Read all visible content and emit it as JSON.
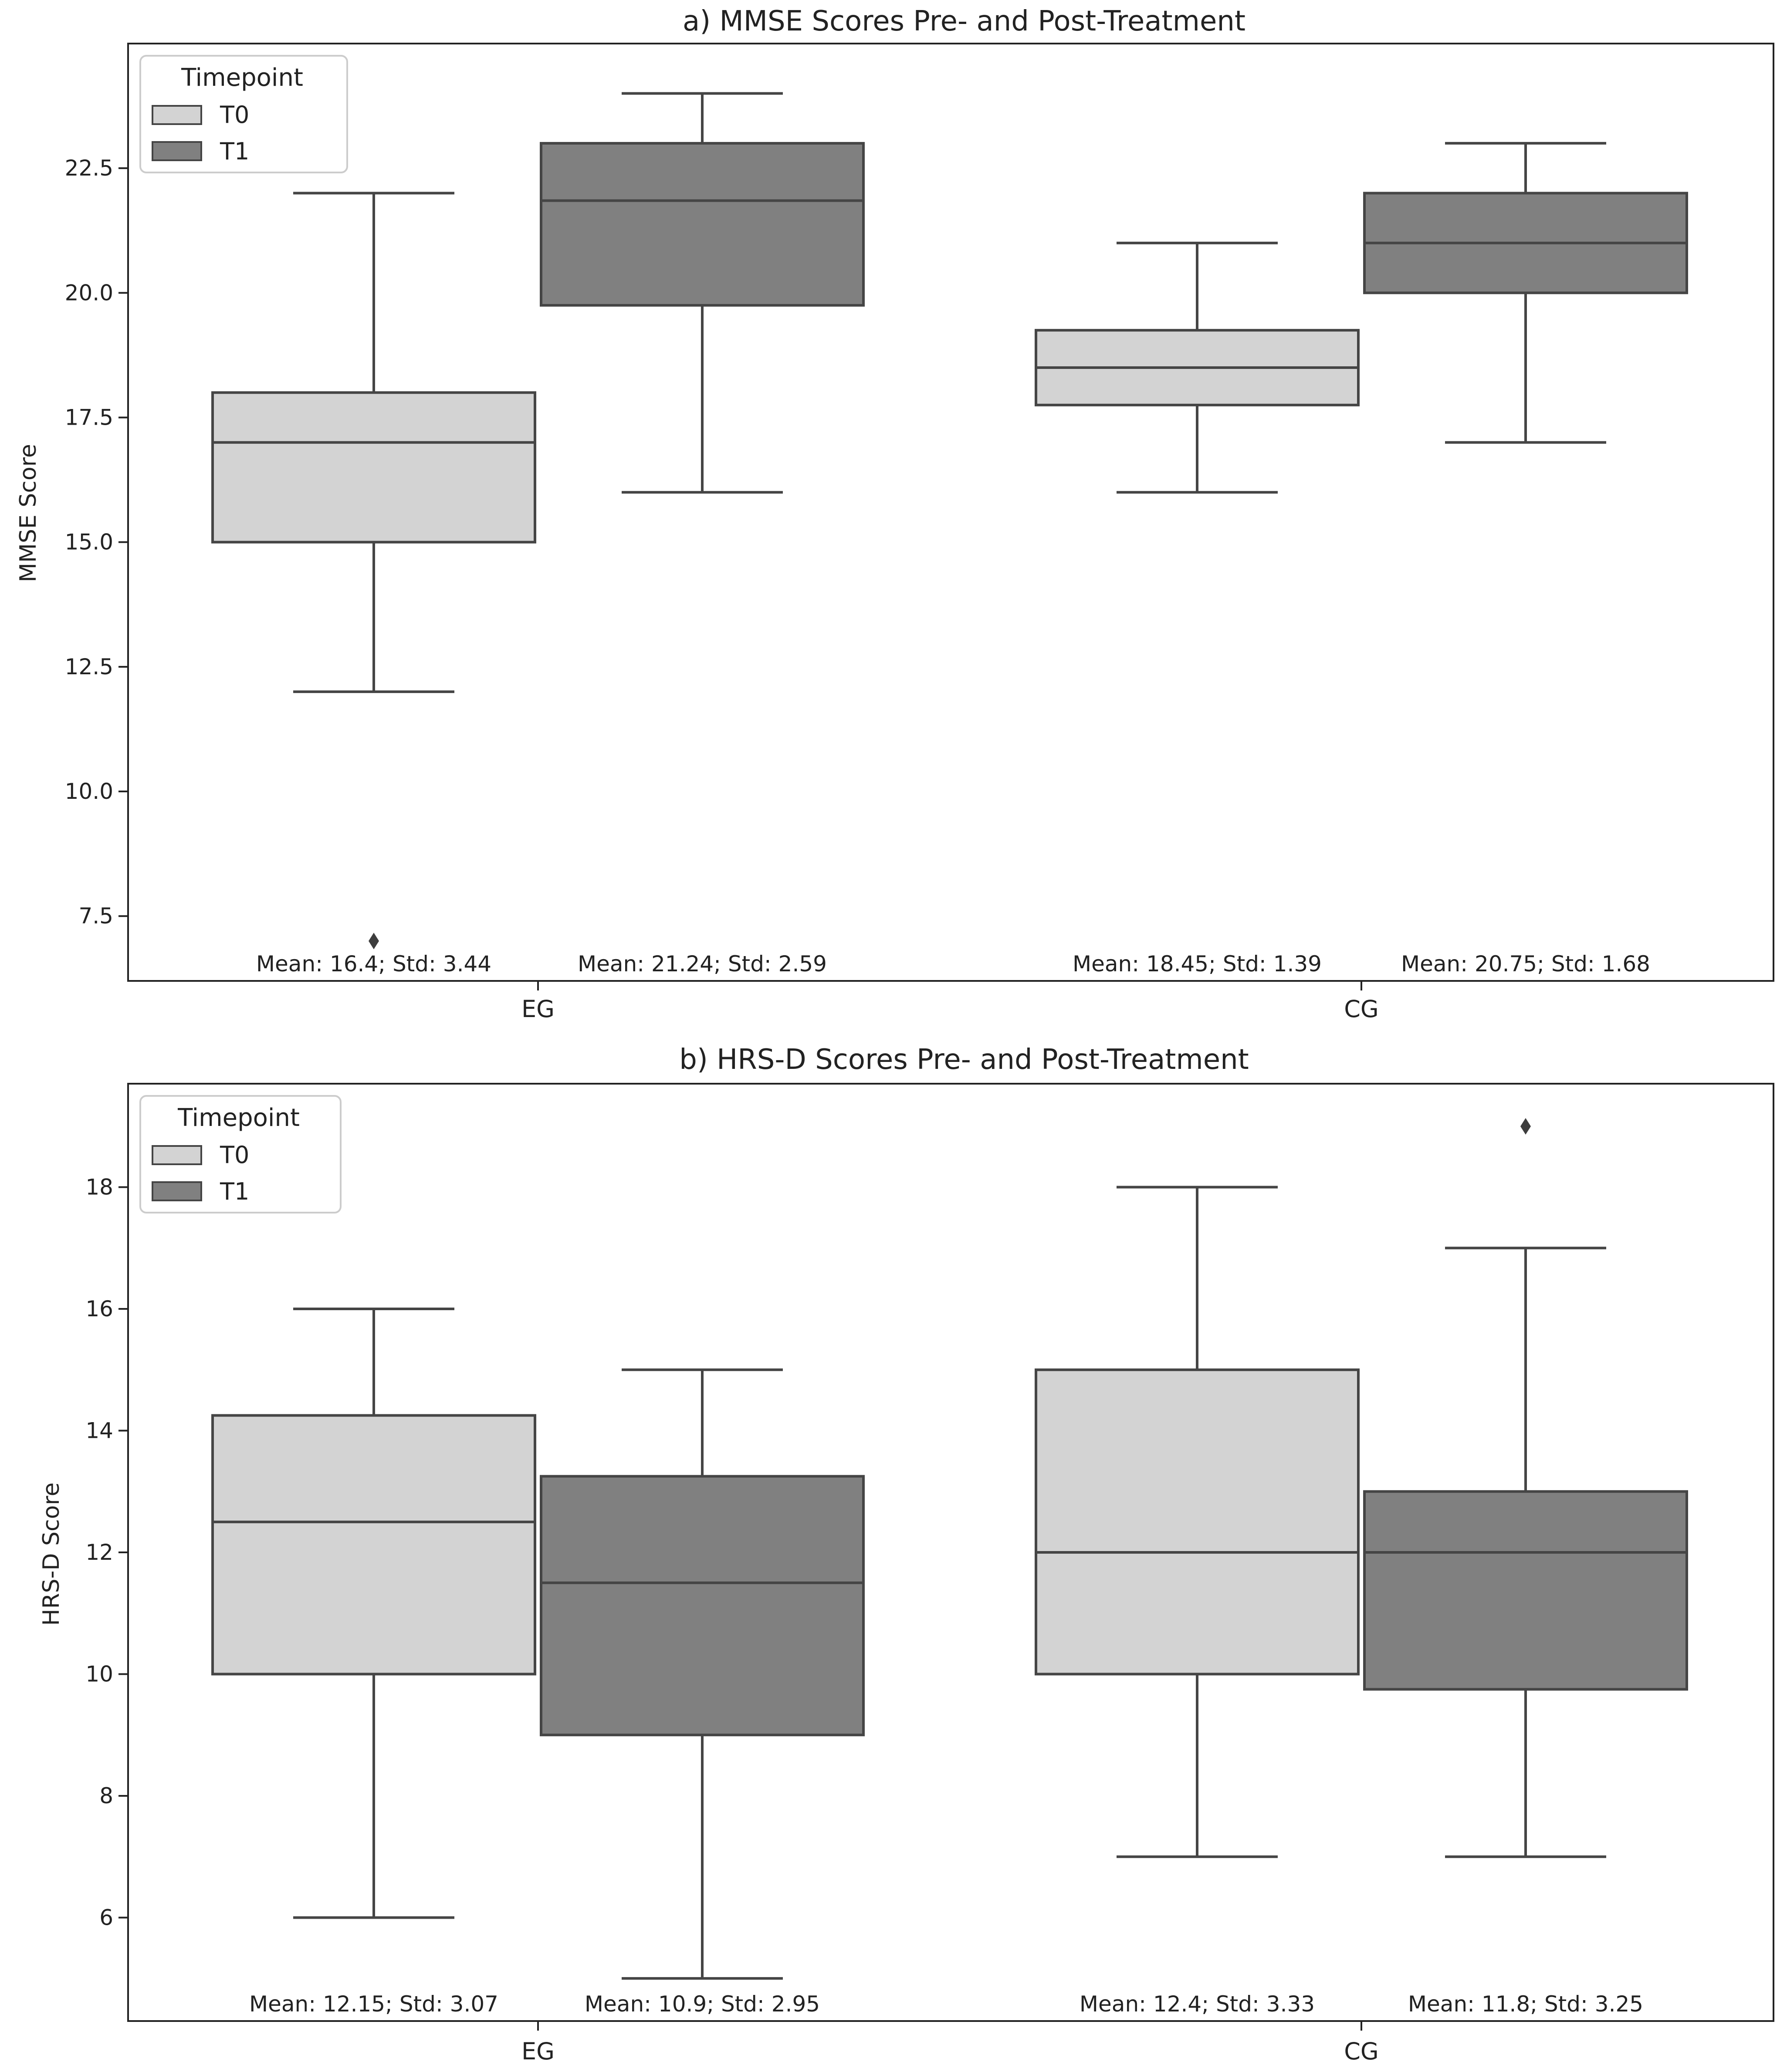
{
  "chart_data": [
    {
      "type": "box",
      "title": "a) MMSE Scores Pre- and Post-Treatment",
      "xlabel": "",
      "ylabel": "MMSE Score",
      "ylim": [
        6.2,
        25.0
      ],
      "yticks": [
        7.5,
        10.0,
        12.5,
        15.0,
        17.5,
        20.0,
        22.5
      ],
      "ytick_labels": [
        "7.5",
        "10.0",
        "12.5",
        "15.0",
        "17.5",
        "20.0",
        "22.5"
      ],
      "categories": [
        "EG",
        "CG"
      ],
      "legend": {
        "title": "Timepoint",
        "position": "top-left",
        "entries": [
          "T0",
          "T1"
        ]
      },
      "colors": {
        "T0": "#d3d3d3",
        "T1": "#808080",
        "line": "#454545"
      },
      "boxes": [
        {
          "category": "EG",
          "series": "T0",
          "whisker_low": 12.0,
          "q1": 15.0,
          "median": 17.0,
          "q3": 18.0,
          "whisker_high": 22.0,
          "outliers": [
            7.0
          ],
          "annotation": "Mean: 16.4; Std: 3.44"
        },
        {
          "category": "EG",
          "series": "T1",
          "whisker_low": 16.0,
          "q1": 19.75,
          "median": 21.85,
          "q3": 23.0,
          "whisker_high": 24.0,
          "outliers": [],
          "annotation": "Mean: 21.24; Std: 2.59"
        },
        {
          "category": "CG",
          "series": "T0",
          "whisker_low": 16.0,
          "q1": 17.75,
          "median": 18.5,
          "q3": 19.25,
          "whisker_high": 21.0,
          "outliers": [],
          "annotation": "Mean: 18.45; Std: 1.39"
        },
        {
          "category": "CG",
          "series": "T1",
          "whisker_low": 17.0,
          "q1": 20.0,
          "median": 21.0,
          "q3": 22.0,
          "whisker_high": 23.0,
          "outliers": [],
          "annotation": "Mean: 20.75; Std: 1.68"
        }
      ]
    },
    {
      "type": "box",
      "title": "b) HRS-D Scores Pre- and Post-Treatment",
      "xlabel": "",
      "ylabel": "HRS-D Score",
      "ylim": [
        4.3,
        19.7
      ],
      "yticks": [
        6,
        8,
        10,
        12,
        14,
        16,
        18
      ],
      "ytick_labels": [
        "6",
        "8",
        "10",
        "12",
        "14",
        "16",
        "18"
      ],
      "categories": [
        "EG",
        "CG"
      ],
      "legend": {
        "title": "Timepoint",
        "position": "top-left",
        "entries": [
          "T0",
          "T1"
        ]
      },
      "colors": {
        "T0": "#d3d3d3",
        "T1": "#808080",
        "line": "#454545"
      },
      "boxes": [
        {
          "category": "EG",
          "series": "T0",
          "whisker_low": 6.0,
          "q1": 10.0,
          "median": 12.5,
          "q3": 14.25,
          "whisker_high": 16.0,
          "outliers": [],
          "annotation": "Mean: 12.15; Std: 3.07"
        },
        {
          "category": "EG",
          "series": "T1",
          "whisker_low": 5.0,
          "q1": 9.0,
          "median": 11.5,
          "q3": 13.25,
          "whisker_high": 15.0,
          "outliers": [],
          "annotation": "Mean: 10.9; Std: 2.95"
        },
        {
          "category": "CG",
          "series": "T0",
          "whisker_low": 7.0,
          "q1": 10.0,
          "median": 12.0,
          "q3": 15.0,
          "whisker_high": 18.0,
          "outliers": [],
          "annotation": "Mean: 12.4; Std: 3.33"
        },
        {
          "category": "CG",
          "series": "T1",
          "whisker_low": 7.0,
          "q1": 9.75,
          "median": 12.0,
          "q3": 13.0,
          "whisker_high": 17.0,
          "outliers": [
            19.0
          ],
          "annotation": "Mean: 11.8; Std: 3.25"
        }
      ]
    }
  ]
}
